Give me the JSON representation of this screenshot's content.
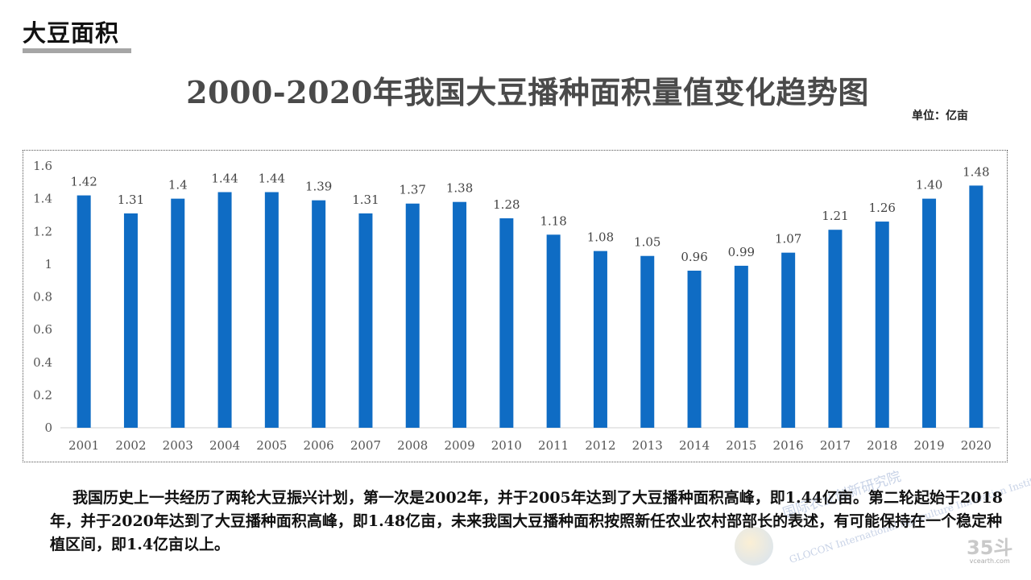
{
  "header": {
    "section_title": "大豆面积",
    "main_title": "2000-2020年我国大豆播种面积量值变化趋势图",
    "unit": "单位：亿亩"
  },
  "colors": {
    "bar": "#0f6cc4",
    "axis_text": "#555555",
    "underline": "#a6a6a6"
  },
  "chart_data": {
    "type": "bar",
    "title": "2000-2020年我国大豆播种面积量值变化趋势图",
    "xlabel": "",
    "ylabel": "",
    "ylim": [
      0,
      1.6
    ],
    "yticks": [
      "0",
      "0.2",
      "0.4",
      "0.6",
      "0.8",
      "1",
      "1.2",
      "1.4",
      "1.6"
    ],
    "grid": false,
    "categories": [
      "2001",
      "2002",
      "2003",
      "2004",
      "2005",
      "2006",
      "2007",
      "2008",
      "2009",
      "2010",
      "2011",
      "2012",
      "2013",
      "2014",
      "2015",
      "2016",
      "2017",
      "2018",
      "2019",
      "2020"
    ],
    "values": [
      1.42,
      1.31,
      1.4,
      1.44,
      1.44,
      1.39,
      1.31,
      1.37,
      1.38,
      1.28,
      1.18,
      1.08,
      1.05,
      0.96,
      0.99,
      1.07,
      1.21,
      1.26,
      1.4,
      1.48
    ],
    "data_labels": [
      "1.42",
      "1.31",
      "1.4",
      "1.44",
      "1.44",
      "1.39",
      "1.31",
      "1.37",
      "1.38",
      "1.28",
      "1.18",
      "1.08",
      "1.05",
      "0.96",
      "0.99",
      "1.07",
      "1.21",
      "1.26",
      "1.40",
      "1.48"
    ]
  },
  "body": {
    "paragraph": "我国历史上一共经历了两轮大豆振兴计划，第一次是2002年，并于2005年达到了大豆播种面积高峰，即1.44亿亩。第二轮起始于2018年，并于2020年达到了大豆播种面积高峰，即1.48亿亩，未来我国大豆播种面积按照新任农业农村部部长的表述，有可能保持在一个稳定种植区间，即1.4亿亩以上。"
  },
  "watermark": {
    "text_cn": "国际农业创新研究院",
    "text_en": "GLOCON International Agriculture Innovation Institute"
  },
  "brand": {
    "logo": "35斗",
    "url": "vcearth.com"
  }
}
